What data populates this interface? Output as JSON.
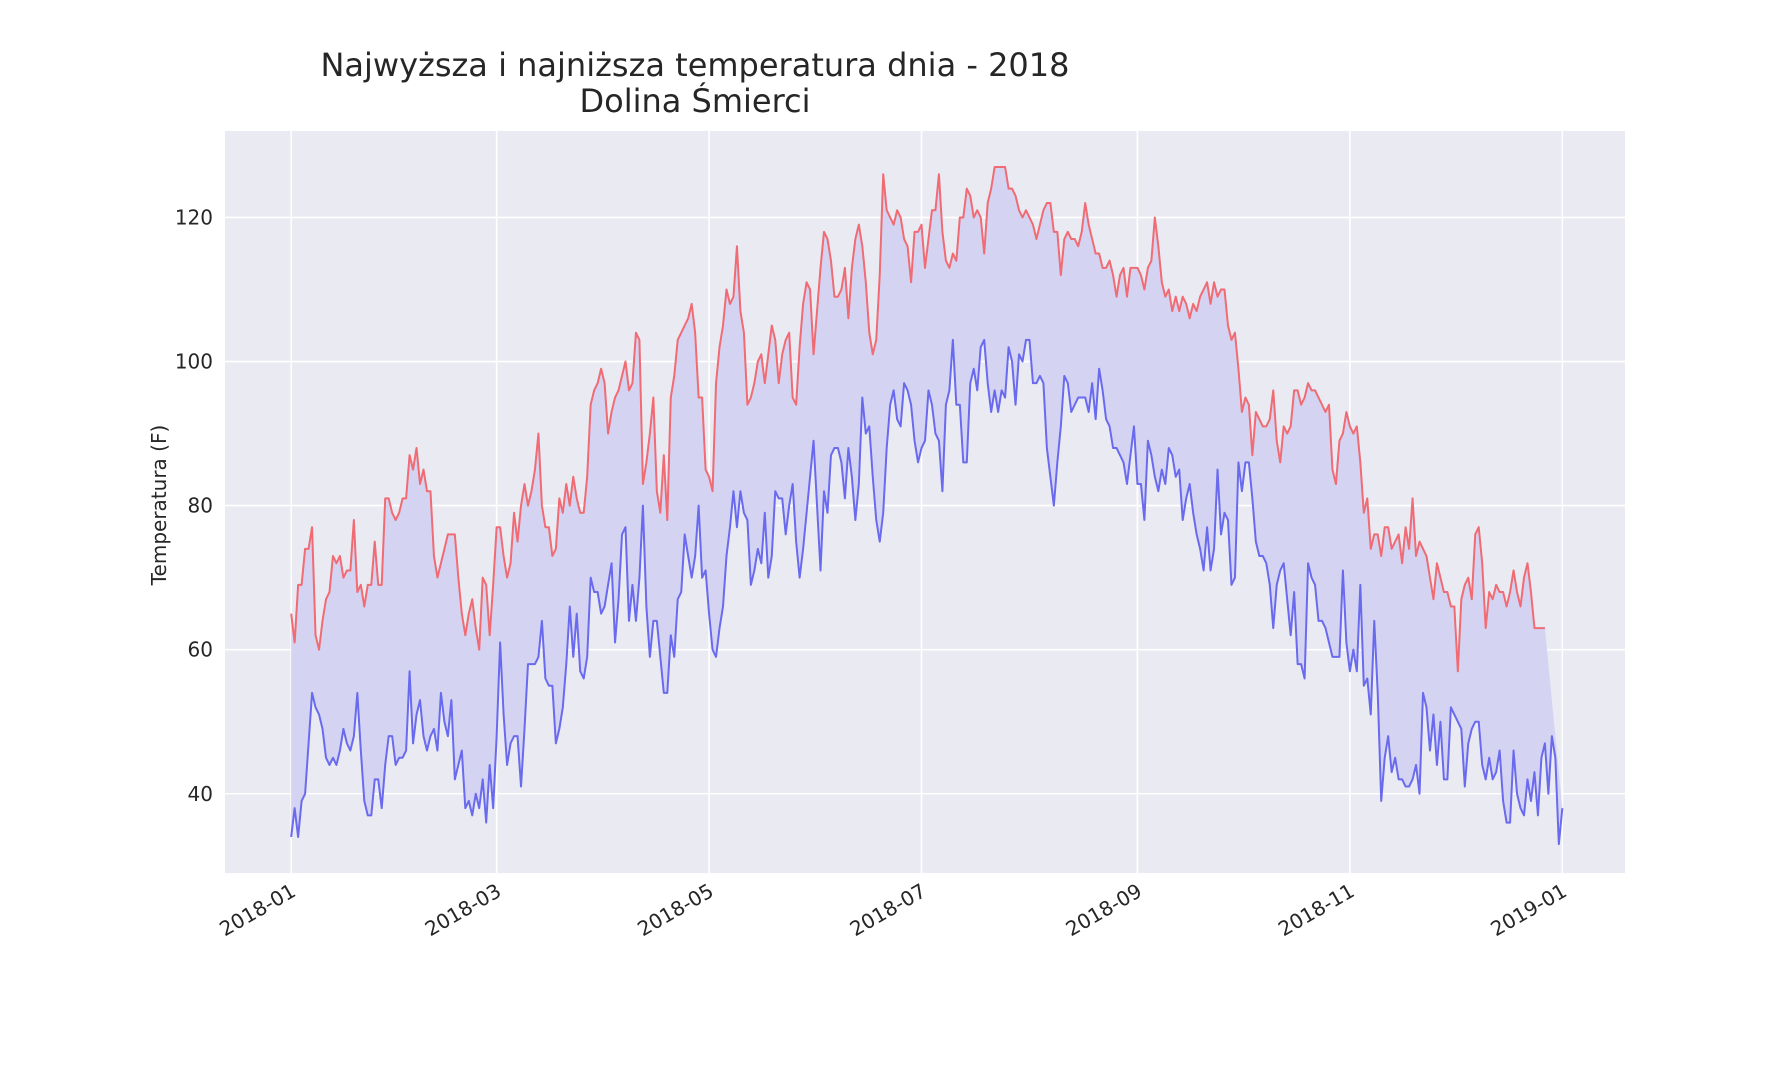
{
  "chart_data": {
    "type": "line",
    "title": "Najwyższa i najniższa temperatura dnia - 2018",
    "subtitle": "Dolina Śmierci",
    "xlabel": "",
    "ylabel": "Temperatura (F)",
    "x_range": [
      "2018-01-01",
      "2018-12-31"
    ],
    "xlim": [
      "2017-12-13",
      "2019-01-19"
    ],
    "ylim": [
      29,
      132
    ],
    "x_ticks": [
      "2018-01-01",
      "2018-03-01",
      "2018-05-01",
      "2018-07-01",
      "2018-09-01",
      "2018-11-01",
      "2019-01-01"
    ],
    "x_tick_labels": [
      "2018-01",
      "2018-03",
      "2018-05",
      "2018-07",
      "2018-09",
      "2018-11",
      "2019-01"
    ],
    "y_ticks": [
      40,
      60,
      80,
      100,
      120
    ],
    "y_tick_labels": [
      "40",
      "60",
      "80",
      "100",
      "120"
    ],
    "grid": true,
    "fill_between": true,
    "colors": {
      "high": "#f06b73",
      "low": "#6a6aef",
      "fill": "#d4d4f2",
      "plot_background": "#eaeaf2",
      "grid": "#ffffff"
    },
    "series": [
      {
        "color_key": "high",
        "values": [
          65,
          61,
          69,
          69,
          74,
          74,
          77,
          62,
          60,
          64,
          67,
          68,
          73,
          72,
          73,
          70,
          71,
          71,
          78,
          68,
          69,
          66,
          69,
          69,
          75,
          69,
          69,
          81,
          81,
          79,
          78,
          79,
          81,
          81,
          87,
          85,
          88,
          83,
          85,
          82,
          82,
          73,
          70,
          72,
          74,
          76,
          76,
          76,
          70,
          65,
          62,
          65,
          67,
          63,
          60,
          70,
          69,
          62,
          69,
          77,
          77,
          73,
          70,
          72,
          79,
          75,
          80,
          83,
          80,
          82,
          85,
          90,
          80,
          77,
          77,
          73,
          74,
          81,
          79,
          83,
          80,
          84,
          81,
          79,
          79,
          84,
          94,
          96,
          97,
          99,
          97,
          90,
          93,
          95,
          96,
          98,
          100,
          96,
          97,
          104,
          103,
          83,
          86,
          90,
          95,
          82,
          79,
          87,
          78,
          95,
          98,
          103,
          104,
          105,
          106,
          108,
          104,
          95,
          95,
          85,
          84,
          82,
          97,
          102,
          105,
          110,
          108,
          109,
          116,
          107,
          104,
          94,
          95,
          97,
          100,
          101,
          97,
          101,
          105,
          103,
          97,
          101,
          103,
          104,
          95,
          94,
          102,
          108,
          111,
          110,
          101,
          107,
          113,
          118,
          117,
          114,
          109,
          109,
          110,
          113,
          106,
          113,
          117,
          119,
          116,
          111,
          104,
          101,
          103,
          112,
          126,
          121,
          120,
          119,
          121,
          120,
          117,
          116,
          111,
          118,
          118,
          119,
          113,
          117,
          121,
          121,
          126,
          118,
          114,
          113,
          115,
          114,
          120,
          120,
          124,
          123,
          120,
          121,
          120,
          115,
          122,
          124,
          127,
          127,
          127,
          127,
          124,
          124,
          123,
          121,
          120,
          121,
          120,
          119,
          117,
          119,
          121,
          122,
          122,
          118,
          118,
          112,
          117,
          118,
          117,
          117,
          116,
          118,
          122,
          119,
          117,
          115,
          115,
          113,
          113,
          114,
          112,
          109,
          112,
          113,
          109,
          113,
          113,
          113,
          112,
          110,
          113,
          114,
          120,
          116,
          111,
          109,
          110,
          107,
          109,
          107,
          109,
          108,
          106,
          108,
          107,
          109,
          110,
          111,
          108,
          111,
          109,
          110,
          110,
          105,
          103,
          104,
          99,
          93,
          95,
          94,
          87,
          93,
          92,
          91,
          91,
          92,
          96,
          89,
          86,
          91,
          90,
          91,
          96,
          96,
          94,
          95,
          97,
          96,
          96,
          95,
          94,
          93,
          94,
          85,
          83,
          89,
          90,
          93,
          91,
          90,
          91,
          86,
          79,
          81,
          74,
          76,
          76,
          73,
          77,
          77,
          74,
          75,
          76,
          72,
          77,
          74,
          81,
          73,
          75,
          74,
          73,
          70,
          67,
          72,
          70,
          68,
          68,
          66,
          66,
          57,
          67,
          69,
          70,
          67,
          76,
          77,
          72,
          63,
          68,
          67,
          69,
          68,
          68,
          66,
          68,
          71,
          68,
          66,
          70,
          72,
          68,
          63,
          63,
          63,
          63
        ]
      },
      {
        "color_key": "low",
        "values": [
          34,
          38,
          34,
          39,
          40,
          47,
          54,
          52,
          51,
          49,
          45,
          44,
          45,
          44,
          46,
          49,
          47,
          46,
          48,
          54,
          46,
          39,
          37,
          37,
          42,
          42,
          38,
          44,
          48,
          48,
          44,
          45,
          45,
          46,
          57,
          47,
          51,
          53,
          48,
          46,
          48,
          49,
          46,
          54,
          50,
          48,
          53,
          42,
          44,
          46,
          38,
          39,
          37,
          40,
          38,
          42,
          36,
          44,
          38,
          48,
          61,
          51,
          44,
          47,
          48,
          48,
          41,
          49,
          58,
          58,
          58,
          59,
          64,
          56,
          55,
          55,
          47,
          49,
          52,
          58,
          66,
          59,
          65,
          57,
          56,
          59,
          70,
          68,
          68,
          65,
          66,
          69,
          72,
          61,
          67,
          76,
          77,
          64,
          69,
          64,
          70,
          80,
          66,
          59,
          64,
          64,
          59,
          54,
          54,
          62,
          59,
          67,
          68,
          76,
          73,
          70,
          73,
          80,
          70,
          71,
          65,
          60,
          59,
          63,
          66,
          73,
          77,
          82,
          77,
          82,
          79,
          78,
          69,
          71,
          74,
          72,
          79,
          70,
          73,
          82,
          81,
          81,
          76,
          80,
          83,
          75,
          70,
          74,
          79,
          84,
          89,
          80,
          71,
          82,
          79,
          87,
          88,
          88,
          86,
          81,
          88,
          84,
          78,
          83,
          95,
          90,
          91,
          84,
          78,
          75,
          79,
          88,
          94,
          96,
          92,
          91,
          97,
          96,
          94,
          89,
          86,
          88,
          89,
          96,
          94,
          90,
          89,
          82,
          94,
          96,
          103,
          94,
          94,
          86,
          86,
          97,
          99,
          96,
          102,
          103,
          97,
          93,
          96,
          93,
          96,
          95,
          102,
          100,
          94,
          101,
          100,
          103,
          103,
          97,
          97,
          98,
          97,
          88,
          84,
          80,
          86,
          91,
          98,
          97,
          93,
          94,
          95,
          95,
          95,
          93,
          97,
          92,
          99,
          96,
          92,
          91,
          88,
          88,
          87,
          86,
          83,
          87,
          91,
          83,
          83,
          78,
          89,
          87,
          84,
          82,
          85,
          83,
          88,
          87,
          84,
          85,
          78,
          81,
          83,
          79,
          76,
          74,
          71,
          77,
          71,
          74,
          85,
          76,
          79,
          78,
          69,
          70,
          86,
          82,
          86,
          86,
          81,
          75,
          73,
          73,
          72,
          69,
          63,
          69,
          71,
          72,
          67,
          62,
          68,
          58,
          58,
          56,
          72,
          70,
          69,
          64,
          64,
          63,
          61,
          59,
          59,
          59,
          71,
          61,
          57,
          60,
          57,
          69,
          55,
          56,
          51,
          64,
          54,
          39,
          45,
          48,
          43,
          45,
          42,
          42,
          41,
          41,
          42,
          44,
          40,
          54,
          52,
          46,
          51,
          44,
          50,
          42,
          42,
          52,
          51,
          50,
          49,
          41,
          47,
          49,
          50,
          50,
          44,
          42,
          45,
          42,
          43,
          46,
          39,
          36,
          36,
          46,
          40,
          38,
          37,
          42,
          39,
          43,
          37,
          45,
          47,
          40,
          48,
          45,
          33,
          38
        ]
      }
    ]
  }
}
